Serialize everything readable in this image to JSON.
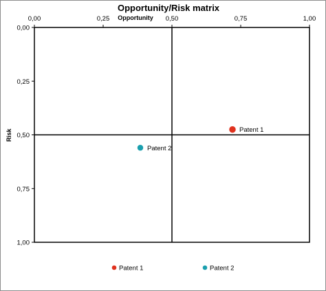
{
  "chart_data": {
    "type": "scatter",
    "title": "Opportunity/Risk matrix",
    "xlabel": "Opportunity",
    "ylabel": "Risk",
    "xlim": [
      0,
      1
    ],
    "ylim": [
      0,
      1
    ],
    "y_inverted": true,
    "x_ticks": [
      "0,00",
      "0,25",
      "0,50",
      "0,75",
      "1,00"
    ],
    "y_ticks": [
      "0,00",
      "0,25",
      "0,50",
      "0,75",
      "1,00"
    ],
    "x_tick_values": [
      0,
      0.25,
      0.5,
      0.75,
      1.0
    ],
    "y_tick_values": [
      0,
      0.25,
      0.5,
      0.75,
      1.0
    ],
    "x_axis_position": "top",
    "quadrant_lines": {
      "x": 0.5,
      "y": 0.5
    },
    "grid": false,
    "legend_position": "bottom",
    "series": [
      {
        "name": "Patent 1",
        "x": 0.72,
        "y": 0.475,
        "color": "#e0321e",
        "size": "large"
      },
      {
        "name": "Patent 2",
        "x": 0.385,
        "y": 0.56,
        "color": "#1a9fae",
        "size": "medium"
      }
    ]
  }
}
